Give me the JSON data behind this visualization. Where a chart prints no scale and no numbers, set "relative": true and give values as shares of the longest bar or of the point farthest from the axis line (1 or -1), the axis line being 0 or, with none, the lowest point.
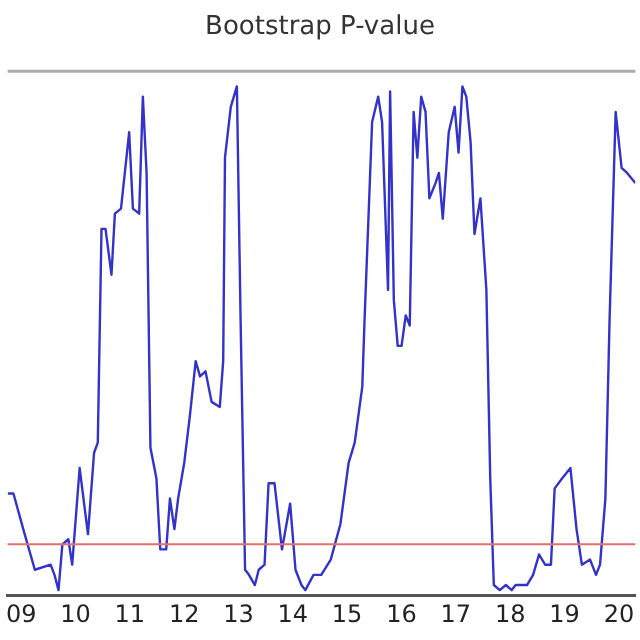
{
  "chart_data": {
    "type": "line",
    "title": "Bootstrap P-value",
    "relative": true,
    "grid": false,
    "legend": false,
    "marker": "none",
    "line_style": "solid",
    "xlim": [
      "2009-04-01",
      "2020-10-19"
    ],
    "xticks": [
      {
        "value": "2009-07-01",
        "label": "09"
      },
      {
        "value": "2010-07-01",
        "label": "10"
      },
      {
        "value": "2011-07-01",
        "label": "11"
      },
      {
        "value": "2012-07-01",
        "label": "12"
      },
      {
        "value": "2013-07-01",
        "label": "13"
      },
      {
        "value": "2014-07-01",
        "label": "14"
      },
      {
        "value": "2015-07-01",
        "label": "15"
      },
      {
        "value": "2016-07-01",
        "label": "16"
      },
      {
        "value": "2017-07-01",
        "label": "17"
      },
      {
        "value": "2018-07-01",
        "label": "18"
      },
      {
        "value": "2019-07-01",
        "label": "19"
      },
      {
        "value": "2020-07-01",
        "label": "20"
      }
    ],
    "ref_lines": [
      {
        "axis": "y",
        "value": 0.1,
        "color": "#e07070"
      }
    ],
    "series": [
      {
        "color": "#3333cc",
        "x": [
          "2009-04-01",
          "2009-05-10",
          "2009-07-15",
          "2009-10-01",
          "2010-01-15",
          "2010-02-10",
          "2010-03-09",
          "2010-04-04",
          "2010-05-14",
          "2010-06-09",
          "2010-07-29",
          "2010-09-23",
          "2010-11-03",
          "2010-11-28",
          "2010-12-23",
          "2011-01-19",
          "2011-02-28",
          "2011-03-23",
          "2011-05-03",
          "2011-06-27",
          "2011-07-22",
          "2011-09-02",
          "2011-09-27",
          "2011-10-22",
          "2011-11-17",
          "2011-12-27",
          "2012-01-22",
          "2012-03-02",
          "2012-03-27",
          "2012-04-26",
          "2012-05-21",
          "2012-07-01",
          "2012-08-07",
          "2012-09-16",
          "2012-10-15",
          "2012-11-21",
          "2013-01-01",
          "2013-02-25",
          "2013-03-20",
          "2013-04-01",
          "2013-05-10",
          "2013-06-20",
          "2013-07-15",
          "2013-08-14",
          "2013-09-09",
          "2013-10-19",
          "2013-11-14",
          "2013-12-23",
          "2014-01-19",
          "2014-02-28",
          "2014-04-19",
          "2014-06-13",
          "2014-07-19",
          "2014-08-28",
          "2014-09-23",
          "2014-11-17",
          "2015-01-08",
          "2015-03-13",
          "2015-05-17",
          "2015-07-11",
          "2015-08-21",
          "2015-10-11",
          "2015-10-26",
          "2015-12-16",
          "2016-01-26",
          "2016-02-21",
          "2016-04-01",
          "2016-04-15",
          "2016-05-10",
          "2016-06-05",
          "2016-07-01",
          "2016-07-29",
          "2016-08-25",
          "2016-09-20",
          "2016-10-15",
          "2016-11-10",
          "2016-12-09",
          "2017-01-04",
          "2017-02-14",
          "2017-03-09",
          "2017-04-04",
          "2017-05-14",
          "2017-06-23",
          "2017-07-19",
          "2017-08-14",
          "2017-09-09",
          "2017-10-08",
          "2017-11-03",
          "2017-12-13",
          "2018-01-22",
          "2018-02-17",
          "2018-03-13",
          "2018-04-22",
          "2018-06-02",
          "2018-07-11",
          "2018-08-07",
          "2018-09-16",
          "2018-10-22",
          "2018-12-02",
          "2019-01-11",
          "2019-02-21",
          "2019-04-01",
          "2019-04-26",
          "2019-06-16",
          "2019-08-10",
          "2019-09-20",
          "2019-10-26",
          "2019-12-20",
          "2020-01-29",
          "2020-02-25",
          "2020-04-01",
          "2020-04-29",
          "2020-06-09",
          "2020-07-19",
          "2020-08-25",
          "2020-10-19"
        ],
        "values": [
          0.2,
          0.2,
          0.13,
          0.05,
          0.06,
          0.04,
          0.01,
          0.1,
          0.11,
          0.06,
          0.25,
          0.12,
          0.28,
          0.3,
          0.72,
          0.72,
          0.63,
          0.75,
          0.76,
          0.91,
          0.76,
          0.75,
          0.98,
          0.83,
          0.29,
          0.23,
          0.09,
          0.09,
          0.19,
          0.13,
          0.19,
          0.26,
          0.35,
          0.46,
          0.43,
          0.44,
          0.38,
          0.37,
          0.46,
          0.86,
          0.96,
          1.0,
          0.54,
          0.05,
          0.04,
          0.02,
          0.05,
          0.06,
          0.22,
          0.22,
          0.09,
          0.18,
          0.05,
          0.02,
          0.01,
          0.04,
          0.04,
          0.07,
          0.14,
          0.26,
          0.3,
          0.41,
          0.54,
          0.93,
          0.98,
          0.93,
          0.6,
          0.99,
          0.58,
          0.49,
          0.49,
          0.55,
          0.53,
          0.95,
          0.86,
          0.98,
          0.95,
          0.78,
          0.81,
          0.83,
          0.74,
          0.91,
          0.96,
          0.87,
          1.0,
          0.98,
          0.89,
          0.71,
          0.78,
          0.6,
          0.23,
          0.02,
          0.01,
          0.02,
          0.01,
          0.02,
          0.02,
          0.02,
          0.04,
          0.08,
          0.06,
          0.06,
          0.21,
          0.23,
          0.25,
          0.13,
          0.06,
          0.07,
          0.04,
          0.06,
          0.19,
          0.54,
          0.95,
          0.84,
          0.83,
          0.81
        ]
      }
    ]
  }
}
